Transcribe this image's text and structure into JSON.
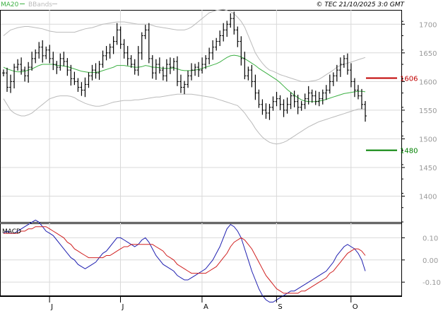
{
  "header": {
    "copyright": "© TEC 21/10/2025 3:0 GMT"
  },
  "chart_data": [
    {
      "type": "line",
      "panel": "price",
      "legend": [
        {
          "label": "MA20",
          "color": "#3cb043"
        },
        {
          "label": "BBands",
          "color": "#bbbbbb"
        }
      ],
      "ylim": [
        1355,
        1725
      ],
      "yticks": [
        "1700",
        "1650",
        "1600",
        "1550",
        "1500",
        "1450",
        "1400"
      ],
      "ytick_values": [
        1700,
        1650,
        1600,
        1550,
        1500,
        1450,
        1400
      ],
      "xticks": [
        "J",
        "J",
        "A",
        "S",
        "O"
      ],
      "xtick_index": [
        6,
        26,
        49,
        70,
        91
      ],
      "grid": true,
      "bar_count": 103,
      "ohlc_close": [
        1615,
        1590,
        1600,
        1625,
        1630,
        1620,
        1610,
        1625,
        1640,
        1650,
        1660,
        1645,
        1655,
        1640,
        1630,
        1625,
        1640,
        1635,
        1620,
        1605,
        1600,
        1590,
        1585,
        1595,
        1610,
        1620,
        1615,
        1630,
        1645,
        1650,
        1660,
        1670,
        1690,
        1665,
        1650,
        1640,
        1630,
        1620,
        1650,
        1680,
        1690,
        1640,
        1615,
        1630,
        1620,
        1610,
        1630,
        1625,
        1635,
        1600,
        1590,
        1595,
        1610,
        1620,
        1625,
        1620,
        1630,
        1640,
        1650,
        1660,
        1670,
        1680,
        1690,
        1700,
        1710,
        1690,
        1670,
        1640,
        1610,
        1620,
        1600,
        1580,
        1560,
        1550,
        1545,
        1555,
        1565,
        1570,
        1560,
        1550,
        1560,
        1575,
        1565,
        1555,
        1560,
        1570,
        1580,
        1575,
        1565,
        1570,
        1580,
        1585,
        1600,
        1610,
        1620,
        1630,
        1640,
        1620,
        1600,
        1585,
        1575,
        1560,
        1540
      ],
      "ma20": [
        1625,
        1622,
        1620,
        1618,
        1617,
        1617,
        1618,
        1620,
        1622,
        1625,
        1628,
        1630,
        1630,
        1630,
        1630,
        1628,
        1628,
        1627,
        1626,
        1624,
        1622,
        1620,
        1618,
        1617,
        1616,
        1616,
        1616,
        1617,
        1619,
        1621,
        1623,
        1625,
        1628,
        1628,
        1628,
        1627,
        1626,
        1625,
        1625,
        1626,
        1628,
        1627,
        1625,
        1625,
        1624,
        1623,
        1623,
        1623,
        1624,
        1622,
        1620,
        1619,
        1619,
        1619,
        1620,
        1621,
        1623,
        1625,
        1627,
        1629,
        1631,
        1634,
        1638,
        1642,
        1645,
        1646,
        1645,
        1643,
        1640,
        1636,
        1632,
        1628,
        1623,
        1619,
        1615,
        1611,
        1607,
        1603,
        1598,
        1592,
        1586,
        1581,
        1576,
        1572,
        1568,
        1566,
        1565,
        1565,
        1565,
        1566,
        1567,
        1569,
        1571,
        1573,
        1575,
        1577,
        1579,
        1580,
        1581,
        1582,
        1583,
        1583,
        1582
      ],
      "bb_upper": [
        1680,
        1685,
        1690,
        1692,
        1694,
        1695,
        1696,
        1696,
        1695,
        1694,
        1693,
        1692,
        1690,
        1688,
        1687,
        1686,
        1686,
        1686,
        1686,
        1686,
        1686,
        1688,
        1690,
        1692,
        1693,
        1694,
        1696,
        1698,
        1700,
        1701,
        1702,
        1703,
        1704,
        1704,
        1704,
        1703,
        1702,
        1701,
        1700,
        1700,
        1700,
        1700,
        1698,
        1696,
        1695,
        1694,
        1693,
        1692,
        1691,
        1690,
        1690,
        1690,
        1692,
        1695,
        1700,
        1705,
        1710,
        1715,
        1720,
        1722,
        1724,
        1725,
        1726,
        1724,
        1722,
        1718,
        1712,
        1705,
        1695,
        1680,
        1665,
        1650,
        1640,
        1632,
        1625,
        1620,
        1618,
        1615,
        1612,
        1610,
        1608,
        1606,
        1604,
        1602,
        1600,
        1600,
        1600,
        1601,
        1602,
        1604,
        1608,
        1612,
        1616,
        1620,
        1625,
        1628,
        1630,
        1632,
        1634,
        1636,
        1638,
        1640,
        1642
      ],
      "bb_lower": [
        1570,
        1560,
        1550,
        1545,
        1542,
        1540,
        1540,
        1542,
        1545,
        1550,
        1555,
        1560,
        1565,
        1570,
        1572,
        1574,
        1575,
        1575,
        1575,
        1574,
        1572,
        1568,
        1565,
        1562,
        1560,
        1558,
        1557,
        1557,
        1558,
        1560,
        1562,
        1564,
        1565,
        1566,
        1567,
        1567,
        1567,
        1568,
        1568,
        1569,
        1570,
        1571,
        1572,
        1573,
        1573,
        1574,
        1575,
        1576,
        1577,
        1578,
        1578,
        1578,
        1578,
        1578,
        1577,
        1576,
        1575,
        1574,
        1573,
        1572,
        1570,
        1568,
        1566,
        1564,
        1562,
        1560,
        1558,
        1552,
        1545,
        1536,
        1528,
        1518,
        1510,
        1503,
        1498,
        1494,
        1492,
        1491,
        1492,
        1494,
        1497,
        1501,
        1505,
        1509,
        1513,
        1517,
        1521,
        1524,
        1527,
        1530,
        1532,
        1534,
        1536,
        1538,
        1540,
        1542,
        1544,
        1546,
        1548,
        1550,
        1552,
        1552,
        1552
      ]
    },
    {
      "type": "line",
      "panel": "macd",
      "title": "MACD",
      "ylim": [
        -0.16,
        0.165
      ],
      "yticks": [
        "0.10",
        "0.00",
        "-0.10"
      ],
      "ytick_values": [
        0.1,
        0.0,
        -0.1
      ],
      "series": [
        {
          "color": "#1f1fb0",
          "values": [
            0.12,
            0.13,
            0.12,
            0.12,
            0.13,
            0.14,
            0.15,
            0.16,
            0.17,
            0.18,
            0.17,
            0.15,
            0.13,
            0.12,
            0.11,
            0.09,
            0.07,
            0.05,
            0.03,
            0.01,
            0.0,
            -0.02,
            -0.03,
            -0.04,
            -0.03,
            -0.02,
            -0.01,
            0.01,
            0.03,
            0.04,
            0.06,
            0.08,
            0.1,
            0.1,
            0.09,
            0.08,
            0.07,
            0.06,
            0.07,
            0.09,
            0.1,
            0.08,
            0.05,
            0.02,
            0.0,
            -0.02,
            -0.03,
            -0.04,
            -0.05,
            -0.07,
            -0.08,
            -0.09,
            -0.09,
            -0.08,
            -0.07,
            -0.06,
            -0.05,
            -0.04,
            -0.02,
            0.0,
            0.03,
            0.06,
            0.1,
            0.14,
            0.16,
            0.15,
            0.13,
            0.1,
            0.05,
            0.0,
            -0.05,
            -0.09,
            -0.13,
            -0.16,
            -0.18,
            -0.19,
            -0.19,
            -0.18,
            -0.17,
            -0.16,
            -0.15,
            -0.14,
            -0.14,
            -0.13,
            -0.12,
            -0.11,
            -0.1,
            -0.09,
            -0.08,
            -0.07,
            -0.06,
            -0.05,
            -0.03,
            -0.01,
            0.02,
            0.04,
            0.06,
            0.07,
            0.06,
            0.05,
            0.03,
            0.0,
            -0.05
          ]
        },
        {
          "color": "#d02020",
          "values": [
            0.12,
            0.12,
            0.12,
            0.12,
            0.12,
            0.13,
            0.13,
            0.14,
            0.14,
            0.15,
            0.15,
            0.15,
            0.15,
            0.14,
            0.13,
            0.12,
            0.11,
            0.1,
            0.08,
            0.07,
            0.05,
            0.04,
            0.03,
            0.02,
            0.01,
            0.01,
            0.01,
            0.01,
            0.01,
            0.02,
            0.02,
            0.03,
            0.04,
            0.05,
            0.06,
            0.06,
            0.07,
            0.07,
            0.07,
            0.07,
            0.07,
            0.07,
            0.07,
            0.06,
            0.05,
            0.04,
            0.02,
            0.01,
            0.0,
            -0.02,
            -0.03,
            -0.04,
            -0.05,
            -0.06,
            -0.06,
            -0.06,
            -0.06,
            -0.06,
            -0.05,
            -0.04,
            -0.03,
            -0.01,
            0.01,
            0.03,
            0.06,
            0.08,
            0.09,
            0.1,
            0.09,
            0.07,
            0.05,
            0.02,
            -0.01,
            -0.04,
            -0.07,
            -0.09,
            -0.11,
            -0.13,
            -0.14,
            -0.15,
            -0.15,
            -0.15,
            -0.15,
            -0.15,
            -0.14,
            -0.14,
            -0.13,
            -0.12,
            -0.11,
            -0.1,
            -0.09,
            -0.08,
            -0.06,
            -0.05,
            -0.03,
            -0.01,
            0.01,
            0.03,
            0.04,
            0.05,
            0.05,
            0.04,
            0.02
          ]
        }
      ]
    }
  ],
  "levels": [
    {
      "label": "1606",
      "value": 1606,
      "color": "#c00000"
    },
    {
      "label": "1480",
      "value": 1480,
      "color": "#008000"
    }
  ]
}
